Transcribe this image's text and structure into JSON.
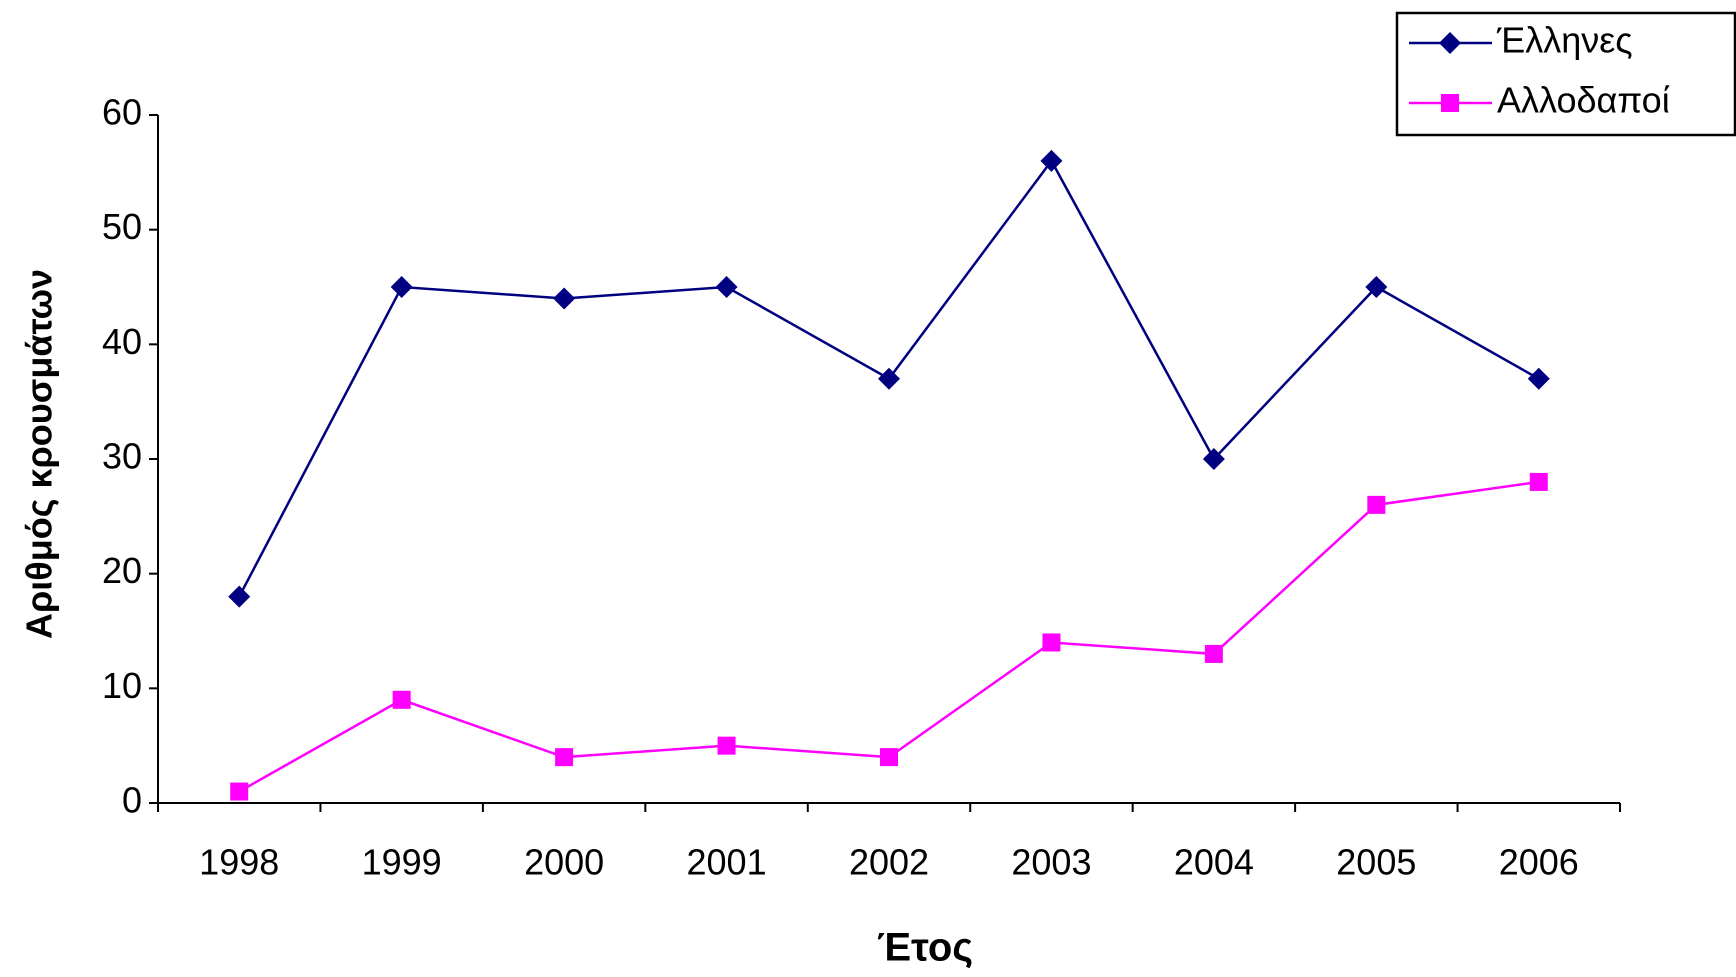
{
  "chart_data": {
    "type": "line",
    "x_label": "Έτος",
    "y_label": "Αριθμός κρουσμάτων",
    "categories": [
      "1998",
      "1999",
      "2000",
      "2001",
      "2002",
      "2003",
      "2004",
      "2005",
      "2006"
    ],
    "series": [
      {
        "name": "Έλληνες",
        "color": "#000080",
        "marker": "diamond",
        "values": [
          18,
          45,
          44,
          45,
          37,
          56,
          30,
          45,
          37
        ]
      },
      {
        "name": "Αλλοδαποί",
        "color": "#ff00ff",
        "marker": "square",
        "values": [
          1,
          9,
          4,
          5,
          4,
          14,
          13,
          26,
          28
        ]
      }
    ],
    "ylim": [
      0,
      60
    ],
    "yticks": [
      0,
      10,
      20,
      30,
      40,
      50,
      60
    ],
    "legend": "top-right"
  }
}
